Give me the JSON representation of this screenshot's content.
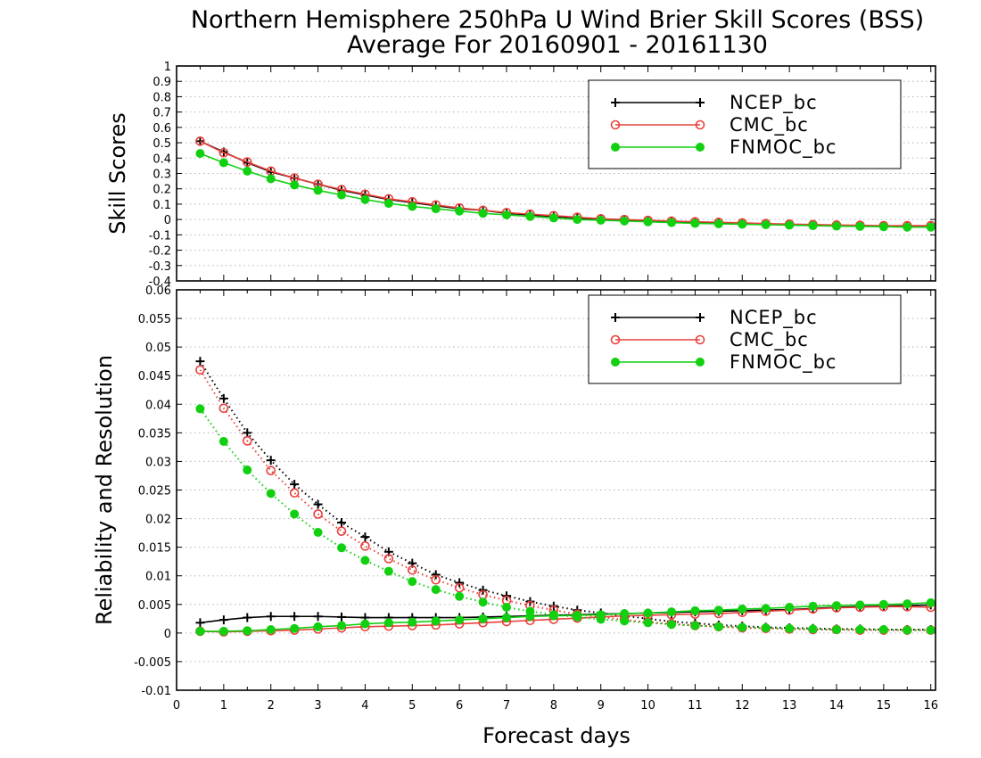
{
  "chart_data": {
    "title_line1": "Northern Hemisphere 250hPa U Wind Brier Skill Scores (BSS)",
    "title_line2": "Average For 20160901 - 20161130",
    "xlabel": "Forecast days",
    "x_ticks": [
      "0",
      "1",
      "2",
      "3",
      "4",
      "5",
      "6",
      "7",
      "8",
      "9",
      "10",
      "11",
      "12",
      "13",
      "14",
      "15",
      "16"
    ],
    "xlim": [
      0,
      16.1
    ],
    "x": [
      0.5,
      1,
      1.5,
      2,
      2.5,
      3,
      3.5,
      4,
      4.5,
      5,
      5.5,
      6,
      6.5,
      7,
      7.5,
      8,
      8.5,
      9,
      9.5,
      10,
      10.5,
      11,
      11.5,
      12,
      12.5,
      13,
      13.5,
      14,
      14.5,
      15,
      15.5,
      16
    ],
    "series_styles": [
      {
        "name": "NCEP_bc",
        "color": "#000000",
        "marker": "plus"
      },
      {
        "name": "CMC_bc",
        "color": "#e8413c",
        "marker": "open-circle"
      },
      {
        "name": "FNMOC_bc",
        "color": "#10d010",
        "marker": "filled-circle"
      }
    ],
    "panels": [
      {
        "type": "line",
        "ylabel": "Skill Scores",
        "ylim": [
          -0.4,
          1
        ],
        "y_ticks": [
          "-0.4",
          "-0.3",
          "-0.2",
          "-0.1",
          "0",
          "0.1",
          "0.2",
          "0.3",
          "0.4",
          "0.5",
          "0.6",
          "0.7",
          "0.8",
          "0.9",
          "1"
        ],
        "grid": true,
        "legend": "top-right",
        "series": [
          {
            "name": "NCEP_bc",
            "line": "solid",
            "values": [
              0.51,
              0.44,
              0.37,
              0.31,
              0.27,
              0.23,
              0.19,
              0.16,
              0.13,
              0.11,
              0.09,
              0.07,
              0.06,
              0.04,
              0.03,
              0.02,
              0.01,
              0.0,
              -0.005,
              -0.01,
              -0.015,
              -0.02,
              -0.023,
              -0.027,
              -0.03,
              -0.033,
              -0.036,
              -0.04,
              -0.042,
              -0.044,
              -0.046,
              -0.048
            ]
          },
          {
            "name": "CMC_bc",
            "line": "solid",
            "values": [
              0.51,
              0.435,
              0.375,
              0.315,
              0.27,
              0.23,
              0.195,
              0.165,
              0.135,
              0.115,
              0.095,
              0.075,
              0.06,
              0.045,
              0.035,
              0.025,
              0.015,
              0.005,
              0.0,
              -0.005,
              -0.01,
              -0.015,
              -0.018,
              -0.022,
              -0.026,
              -0.03,
              -0.033,
              -0.036,
              -0.038,
              -0.04,
              -0.04,
              -0.04
            ]
          },
          {
            "name": "FNMOC_bc",
            "line": "solid",
            "values": [
              0.43,
              0.37,
              0.315,
              0.265,
              0.225,
              0.19,
              0.16,
              0.13,
              0.105,
              0.085,
              0.07,
              0.055,
              0.04,
              0.03,
              0.02,
              0.01,
              0.0,
              -0.005,
              -0.01,
              -0.015,
              -0.02,
              -0.025,
              -0.028,
              -0.031,
              -0.034,
              -0.037,
              -0.04,
              -0.043,
              -0.045,
              -0.047,
              -0.05,
              -0.05
            ]
          }
        ]
      },
      {
        "type": "line",
        "ylabel": "Reliability and Resolution",
        "ylim": [
          -0.01,
          0.06
        ],
        "y_ticks": [
          "-0.01",
          "-0.005",
          "0",
          "0.005",
          "0.01",
          "0.015",
          "0.02",
          "0.025",
          "0.03",
          "0.035",
          "0.04",
          "0.045",
          "0.05",
          "0.055",
          "0.06"
        ],
        "grid": true,
        "legend": "top-right",
        "series": [
          {
            "name": "NCEP_bc",
            "line": "dotted",
            "values": [
              0.0475,
              0.041,
              0.035,
              0.0302,
              0.026,
              0.0225,
              0.0193,
              0.0168,
              0.0142,
              0.0122,
              0.0102,
              0.0088,
              0.0075,
              0.0065,
              0.0055,
              0.0047,
              0.004,
              0.0035,
              0.003,
              0.0025,
              0.002,
              0.0017,
              0.0014,
              0.0012,
              0.001,
              0.0009,
              0.0008,
              0.0007,
              0.0007,
              0.0006,
              0.0006,
              0.0006
            ]
          },
          {
            "name": "NCEP_bc",
            "line": "solid",
            "values": [
              0.0018,
              0.0023,
              0.0027,
              0.0029,
              0.0029,
              0.0029,
              0.0028,
              0.0027,
              0.0027,
              0.0027,
              0.0027,
              0.0027,
              0.0028,
              0.0029,
              0.003,
              0.0031,
              0.0032,
              0.0033,
              0.0034,
              0.0035,
              0.0036,
              0.0037,
              0.0038,
              0.0039,
              0.004,
              0.0041,
              0.0043,
              0.0045,
              0.0046,
              0.0047,
              0.0048,
              0.0049
            ]
          },
          {
            "name": "CMC_bc",
            "line": "dotted",
            "values": [
              0.046,
              0.0393,
              0.0336,
              0.0284,
              0.0245,
              0.0208,
              0.0178,
              0.0152,
              0.013,
              0.011,
              0.0093,
              0.0079,
              0.0067,
              0.0057,
              0.0048,
              0.004,
              0.0033,
              0.0028,
              0.0023,
              0.0019,
              0.0016,
              0.0013,
              0.0011,
              0.0009,
              0.0008,
              0.0007,
              0.0006,
              0.0006,
              0.0005,
              0.0005,
              0.0005,
              0.0005
            ]
          },
          {
            "name": "CMC_bc",
            "line": "solid",
            "values": [
              0.0003,
              0.0002,
              0.0003,
              0.0004,
              0.0005,
              0.0007,
              0.0009,
              0.0011,
              0.0012,
              0.0013,
              0.0014,
              0.0016,
              0.0018,
              0.002,
              0.0022,
              0.0024,
              0.0026,
              0.0028,
              0.003,
              0.0031,
              0.0032,
              0.0033,
              0.0034,
              0.0036,
              0.0038,
              0.004,
              0.0042,
              0.0044,
              0.0045,
              0.0046,
              0.0046,
              0.0045
            ]
          },
          {
            "name": "FNMOC_bc",
            "line": "dotted",
            "values": [
              0.0392,
              0.0335,
              0.0285,
              0.0244,
              0.0208,
              0.0176,
              0.0149,
              0.0127,
              0.0108,
              0.009,
              0.0076,
              0.0064,
              0.0054,
              0.0045,
              0.0038,
              0.0032,
              0.0028,
              0.0024,
              0.0021,
              0.0018,
              0.0015,
              0.0013,
              0.0011,
              0.001,
              0.0009,
              0.0008,
              0.0007,
              0.0006,
              0.0006,
              0.0006,
              0.0005,
              0.0005
            ]
          },
          {
            "name": "FNMOC_bc",
            "line": "solid",
            "values": [
              0.0003,
              0.0003,
              0.0004,
              0.0006,
              0.0008,
              0.0011,
              0.0013,
              0.0016,
              0.0018,
              0.0019,
              0.0021,
              0.0023,
              0.0025,
              0.0027,
              0.0029,
              0.003,
              0.0031,
              0.0032,
              0.0034,
              0.0035,
              0.0037,
              0.0039,
              0.004,
              0.0042,
              0.0043,
              0.0045,
              0.0047,
              0.0048,
              0.0049,
              0.005,
              0.0051,
              0.0053
            ]
          }
        ]
      }
    ]
  }
}
